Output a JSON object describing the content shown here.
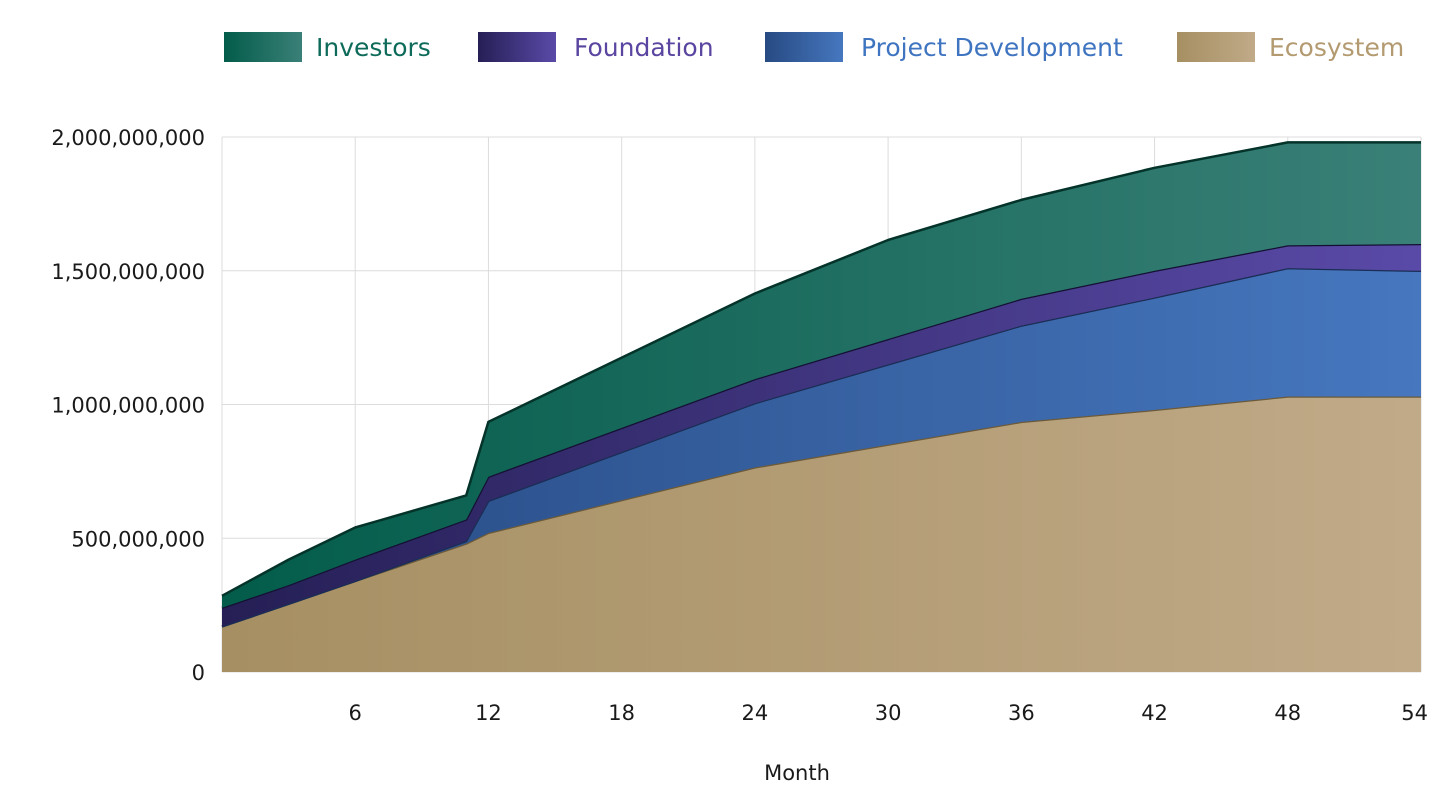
{
  "chart_data": {
    "type": "area",
    "stacked": true,
    "title": "",
    "xlabel": "Month",
    "ylabel": "",
    "xlim": [
      0,
      54
    ],
    "ylim": [
      0,
      2000000000
    ],
    "x_ticks": [
      6,
      12,
      18,
      24,
      30,
      36,
      42,
      48,
      54
    ],
    "y_ticks": [
      {
        "value": 0,
        "label": "0"
      },
      {
        "value": 500000000,
        "label": "500,000,000"
      },
      {
        "value": 1000000000,
        "label": "1,000,000,000"
      },
      {
        "value": 1500000000,
        "label": "1,500,000,000"
      },
      {
        "value": 2000000000,
        "label": "2,000,000,000"
      }
    ],
    "grid": true,
    "legend_position": "top",
    "x": [
      0,
      3,
      6,
      11,
      12,
      24,
      30,
      36,
      42,
      48,
      54
    ],
    "series": [
      {
        "name": "Ecosystem",
        "color_start": "#a68f62",
        "color_end": "#c0aa88",
        "stroke": "#6b5a3a",
        "values": [
          170000000,
          255000000,
          340000000,
          480000000,
          520000000,
          765000000,
          850000000,
          935000000,
          980000000,
          1030000000,
          1030000000
        ]
      },
      {
        "name": "Project Development",
        "color_start": "#274a82",
        "color_end": "#4677bf",
        "stroke": "#1a2d55",
        "values": [
          0,
          0,
          0,
          10000000,
          120000000,
          240000000,
          300000000,
          360000000,
          420000000,
          480000000,
          470000000
        ]
      },
      {
        "name": "Foundation",
        "color_start": "#251f55",
        "color_end": "#5a4aa8",
        "stroke": "#141033",
        "values": [
          70000000,
          70000000,
          80000000,
          80000000,
          90000000,
          90000000,
          95000000,
          100000000,
          100000000,
          85000000,
          100000000
        ]
      },
      {
        "name": "Investors",
        "color_start": "#035c4a",
        "color_end": "#3a8078",
        "stroke": "#04332a",
        "values": [
          45000000,
          95000000,
          120000000,
          90000000,
          205000000,
          320000000,
          370000000,
          370000000,
          385000000,
          385000000,
          380000000
        ]
      }
    ],
    "legend": [
      {
        "name": "Investors",
        "text_color": "#0e6b5a",
        "color_start": "#035c4a",
        "color_end": "#3a8078"
      },
      {
        "name": "Foundation",
        "text_color": "#5a45a0",
        "color_start": "#251f55",
        "color_end": "#5a4aa8"
      },
      {
        "name": "Project Development",
        "text_color": "#3f74c0",
        "color_start": "#274a82",
        "color_end": "#4677bf"
      },
      {
        "name": "Ecosystem",
        "text_color": "#b39a70",
        "color_start": "#a68f62",
        "color_end": "#c0aa88"
      }
    ]
  }
}
